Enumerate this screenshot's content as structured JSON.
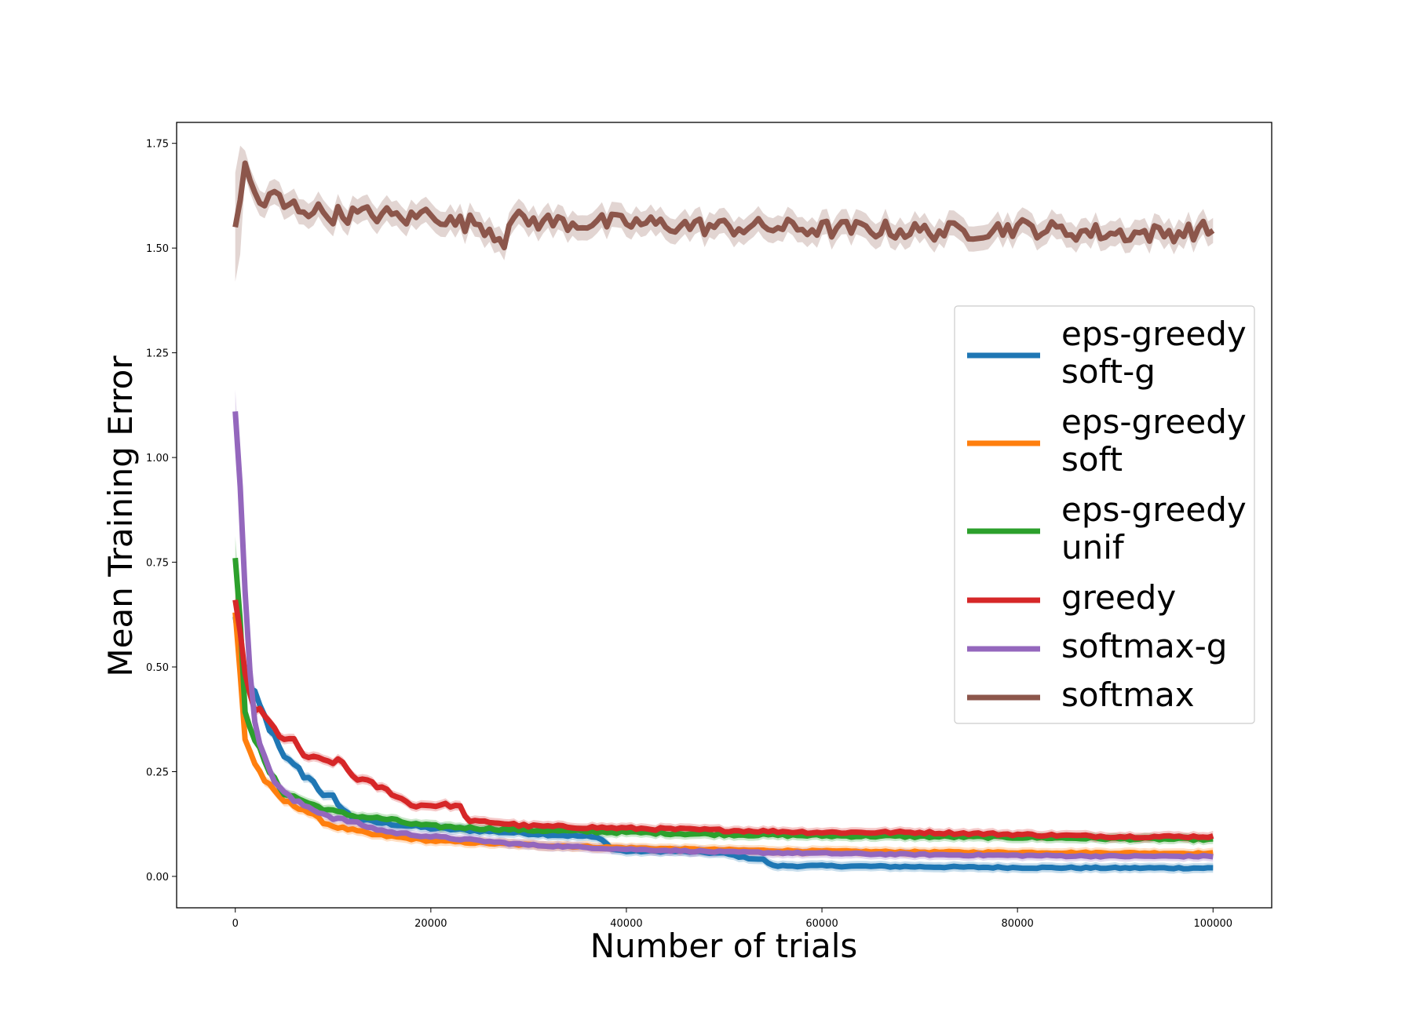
{
  "chart_data": {
    "type": "line",
    "title": "",
    "xlabel": "Number of trials",
    "ylabel": "Mean Training Error",
    "xlim": [
      -6000,
      106000
    ],
    "ylim": [
      -0.075,
      1.8
    ],
    "xticks": [
      0,
      20000,
      40000,
      60000,
      80000,
      100000
    ],
    "xtick_labels": [
      "0",
      "20000",
      "40000",
      "60000",
      "80000",
      "100000"
    ],
    "yticks": [
      0.0,
      0.25,
      0.5,
      0.75,
      1.0,
      1.25,
      1.5,
      1.75
    ],
    "ytick_labels": [
      "0.00",
      "0.25",
      "0.50",
      "0.75",
      "1.00",
      "1.25",
      "1.50",
      "1.75"
    ],
    "grid": false,
    "legend_position": "center-right",
    "series": [
      {
        "name_lines": [
          "eps-greedy",
          "soft-g"
        ],
        "color": "#1f77b4",
        "x": [
          0,
          1000,
          2000,
          3000,
          4000,
          5000,
          6000,
          7000,
          8000,
          9000,
          10000,
          11000,
          12000,
          14000,
          16000,
          18000,
          20000,
          24000,
          28000,
          32000,
          36000,
          37500,
          38500,
          40000,
          45000,
          50000,
          52000,
          54000,
          55000,
          60000,
          70000,
          80000,
          90000,
          100000
        ],
        "y": [
          0.62,
          0.46,
          0.43,
          0.38,
          0.33,
          0.28,
          0.27,
          0.24,
          0.23,
          0.19,
          0.19,
          0.16,
          0.14,
          0.13,
          0.125,
          0.12,
          0.115,
          0.11,
          0.105,
          0.1,
          0.095,
          0.09,
          0.065,
          0.06,
          0.06,
          0.055,
          0.045,
          0.04,
          0.025,
          0.025,
          0.023,
          0.021,
          0.02,
          0.02
        ]
      },
      {
        "name_lines": [
          "eps-greedy",
          "soft"
        ],
        "color": "#ff7f0e",
        "x": [
          0,
          1000,
          2000,
          3000,
          4000,
          5000,
          6000,
          7000,
          8000,
          9000,
          10000,
          12000,
          14000,
          16000,
          18000,
          20000,
          25000,
          30000,
          40000,
          50000,
          60000,
          70000,
          80000,
          90000,
          100000
        ],
        "y": [
          0.63,
          0.33,
          0.27,
          0.23,
          0.2,
          0.18,
          0.17,
          0.16,
          0.145,
          0.13,
          0.12,
          0.11,
          0.1,
          0.095,
          0.09,
          0.085,
          0.08,
          0.075,
          0.068,
          0.063,
          0.06,
          0.058,
          0.057,
          0.056,
          0.055
        ]
      },
      {
        "name_lines": [
          "eps-greedy",
          "unif"
        ],
        "color": "#2ca02c",
        "x": [
          0,
          500,
          1000,
          2000,
          3000,
          4000,
          5000,
          6000,
          7000,
          8000,
          10000,
          12000,
          14000,
          16000,
          18000,
          20000,
          25000,
          30000,
          40000,
          50000,
          60000,
          70000,
          80000,
          90000,
          100000
        ],
        "y": [
          0.76,
          0.6,
          0.4,
          0.33,
          0.27,
          0.23,
          0.2,
          0.19,
          0.18,
          0.17,
          0.155,
          0.145,
          0.14,
          0.135,
          0.125,
          0.12,
          0.115,
          0.11,
          0.105,
          0.1,
          0.097,
          0.095,
          0.093,
          0.09,
          0.088
        ]
      },
      {
        "name_lines": [
          "greedy"
        ],
        "color": "#d62728",
        "x": [
          0,
          1000,
          2000,
          3000,
          4000,
          5000,
          6000,
          7000,
          8000,
          9000,
          10000,
          11000,
          12000,
          14000,
          16000,
          18000,
          20000,
          22000,
          23000,
          24000,
          26000,
          30000,
          40000,
          50000,
          60000,
          70000,
          80000,
          90000,
          100000
        ],
        "y": [
          0.66,
          0.48,
          0.4,
          0.38,
          0.35,
          0.33,
          0.32,
          0.29,
          0.28,
          0.275,
          0.275,
          0.27,
          0.24,
          0.22,
          0.2,
          0.17,
          0.17,
          0.17,
          0.165,
          0.13,
          0.13,
          0.12,
          0.115,
          0.11,
          0.105,
          0.105,
          0.1,
          0.095,
          0.095
        ]
      },
      {
        "name_lines": [
          "softmax-g"
        ],
        "color": "#9467bd",
        "x": [
          0,
          400,
          800,
          1200,
          1600,
          2000,
          2500,
          3000,
          4000,
          5000,
          6000,
          7000,
          8000,
          10000,
          12000,
          14000,
          16000,
          18000,
          20000,
          25000,
          30000,
          40000,
          50000,
          60000,
          70000,
          80000,
          90000,
          100000
        ],
        "y": [
          1.11,
          0.95,
          0.78,
          0.6,
          0.47,
          0.38,
          0.32,
          0.28,
          0.23,
          0.2,
          0.18,
          0.17,
          0.16,
          0.14,
          0.13,
          0.115,
          0.105,
          0.1,
          0.095,
          0.085,
          0.075,
          0.065,
          0.058,
          0.055,
          0.052,
          0.05,
          0.048,
          0.048
        ]
      },
      {
        "name_lines": [
          "softmax"
        ],
        "color": "#8c564b",
        "x": [
          0,
          1000,
          2000,
          3000,
          4000,
          5000,
          6000,
          8000,
          10000,
          12000,
          15000,
          18000,
          20000,
          22000,
          25000,
          27500,
          28000,
          30000,
          35000,
          40000,
          45000,
          50000,
          55000,
          60000,
          65000,
          70000,
          75000,
          80000,
          85000,
          90000,
          95000,
          100000
        ],
        "y": [
          1.55,
          1.69,
          1.63,
          1.6,
          1.63,
          1.6,
          1.6,
          1.59,
          1.58,
          1.58,
          1.58,
          1.57,
          1.59,
          1.56,
          1.56,
          1.52,
          1.57,
          1.565,
          1.56,
          1.56,
          1.555,
          1.55,
          1.55,
          1.545,
          1.545,
          1.54,
          1.54,
          1.55,
          1.54,
          1.535,
          1.535,
          1.545
        ]
      }
    ]
  }
}
